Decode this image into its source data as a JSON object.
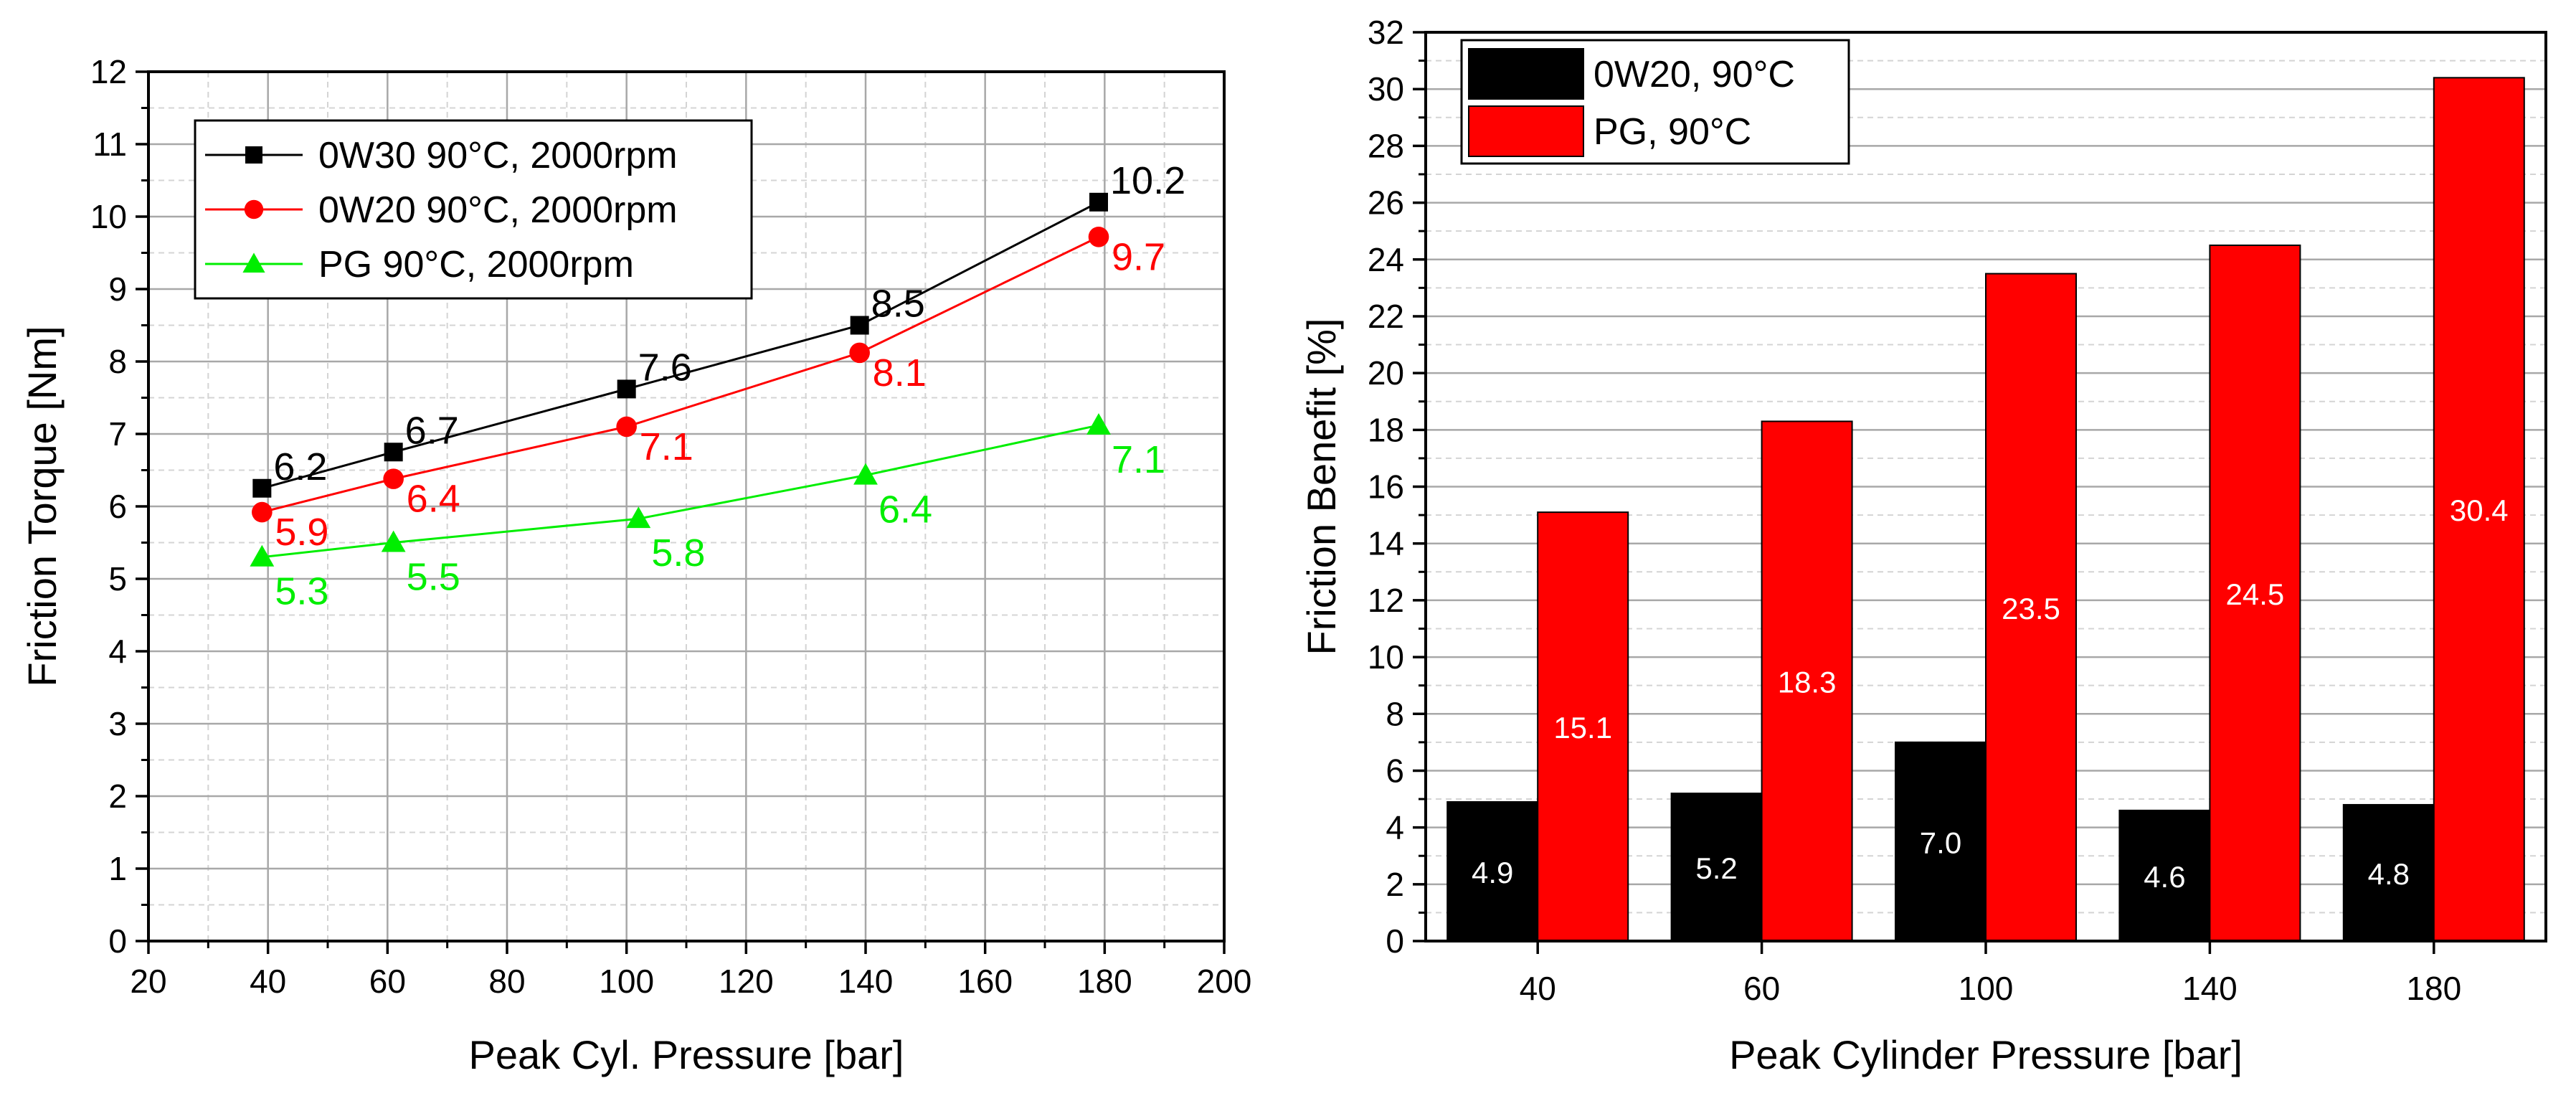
{
  "chart_data": [
    {
      "type": "line",
      "title": "",
      "xlabel": "Peak Cyl. Pressure [bar]",
      "ylabel": "Friction Torque [Nm]",
      "xlim": [
        20,
        200
      ],
      "ylim": [
        0,
        12
      ],
      "xticks": [
        20,
        40,
        60,
        80,
        100,
        120,
        140,
        160,
        180,
        200
      ],
      "yticks": [
        0,
        1,
        2,
        3,
        4,
        5,
        6,
        7,
        8,
        9,
        10,
        11,
        12
      ],
      "grid": true,
      "legend_position": "top-left",
      "series": [
        {
          "name": "0W30 90°C, 2000rpm",
          "color": "#000000",
          "marker": "square",
          "x": [
            39,
            61,
            100,
            139,
            179
          ],
          "y": [
            6.25,
            6.75,
            7.62,
            8.5,
            10.2
          ],
          "labels": [
            "6.2",
            "6.7",
            "7.6",
            "8.5",
            "10.2"
          ]
        },
        {
          "name": "0W20 90°C, 2000rpm",
          "color": "#ff0000",
          "marker": "circle",
          "x": [
            39,
            61,
            100,
            139,
            179
          ],
          "y": [
            5.92,
            6.38,
            7.1,
            8.12,
            9.72
          ],
          "labels": [
            "5.9",
            "6.4",
            "7.1",
            "8.1",
            "9.7"
          ]
        },
        {
          "name": "PG 90°C, 2000rpm",
          "color": "#00ee00",
          "marker": "triangle",
          "x": [
            39,
            61,
            102,
            140,
            179
          ],
          "y": [
            5.3,
            5.5,
            5.83,
            6.43,
            7.12
          ],
          "labels": [
            "5.3",
            "5.5",
            "5.8",
            "6.4",
            "7.1"
          ]
        }
      ]
    },
    {
      "type": "bar",
      "title": "",
      "xlabel": "Peak Cylinder Pressure [bar]",
      "ylabel": "Friction Benefit [%]",
      "categories": [
        "40",
        "60",
        "100",
        "140",
        "180"
      ],
      "ylim": [
        0,
        32
      ],
      "yticks": [
        0,
        2,
        4,
        6,
        8,
        10,
        12,
        14,
        16,
        18,
        20,
        22,
        24,
        26,
        28,
        30,
        32
      ],
      "grid": true,
      "legend_position": "top-left",
      "series": [
        {
          "name": "0W20, 90°C",
          "color": "#000000",
          "values": [
            4.9,
            5.2,
            7.0,
            4.6,
            4.8
          ],
          "labels": [
            "4.9",
            "5.2",
            "7.0",
            "4.6",
            "4.8"
          ]
        },
        {
          "name": "PG, 90°C",
          "color": "#ff0000",
          "values": [
            15.1,
            18.3,
            23.5,
            24.5,
            30.4
          ],
          "labels": [
            "15.1",
            "18.3",
            "23.5",
            "24.5",
            "30.4"
          ]
        }
      ]
    }
  ]
}
